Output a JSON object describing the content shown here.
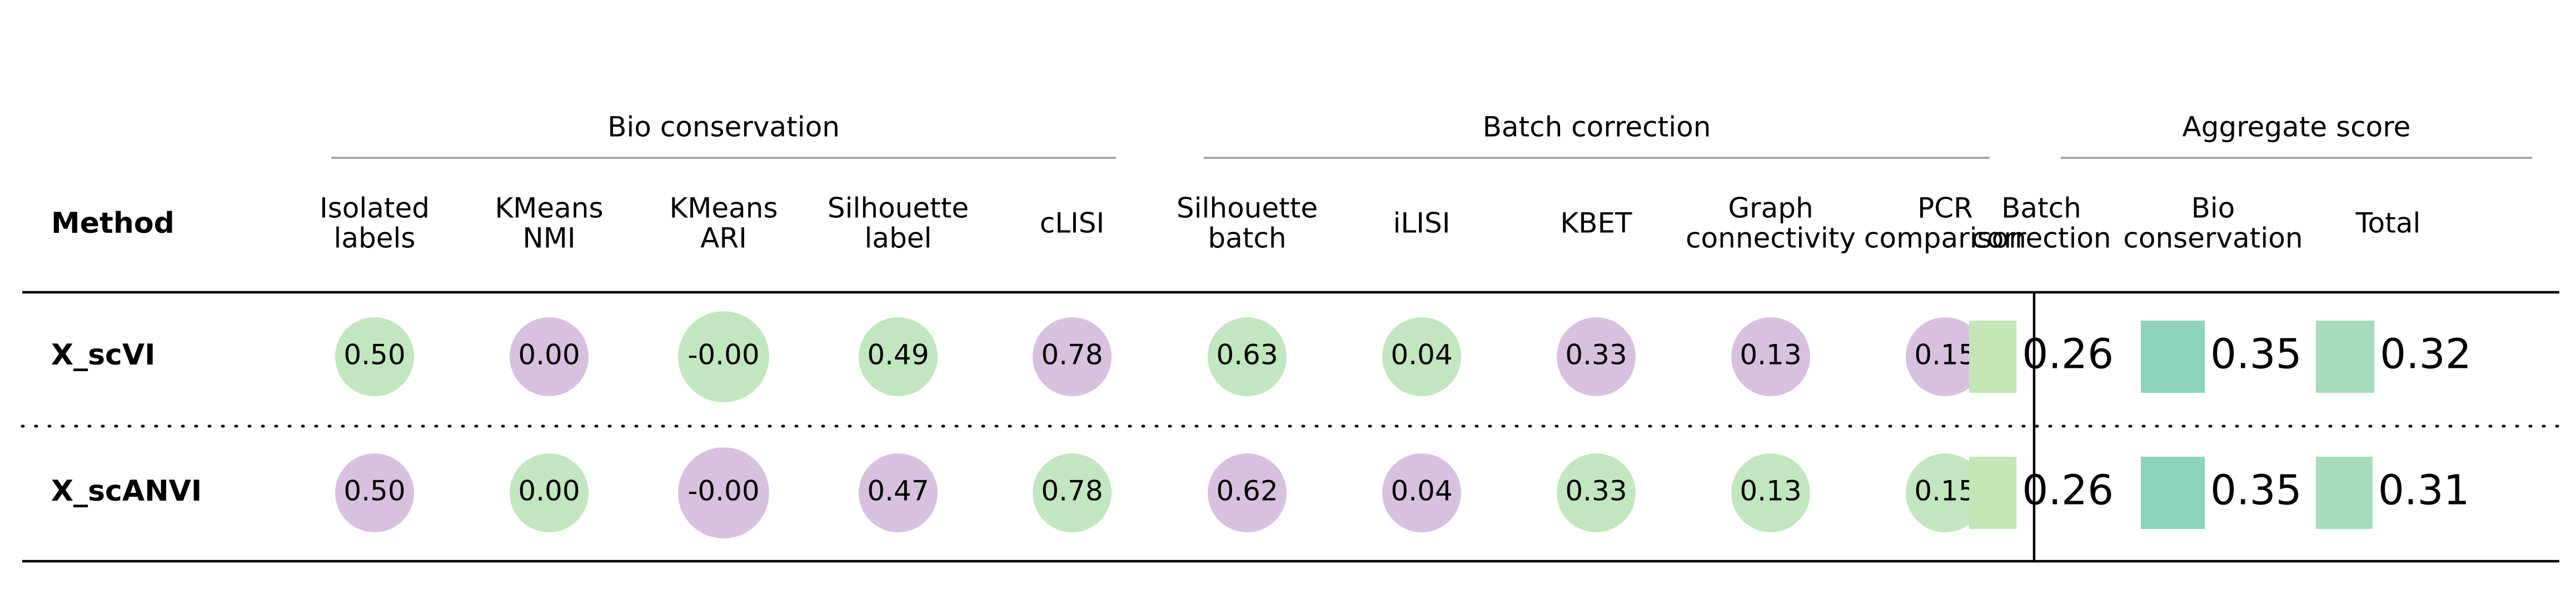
{
  "chart_data": {
    "type": "table",
    "method_header": "Method",
    "groups": [
      {
        "title": "Bio conservation",
        "columns": [
          0,
          1,
          2,
          3,
          4
        ]
      },
      {
        "title": "Batch correction",
        "columns": [
          5,
          6,
          7,
          8,
          9
        ]
      },
      {
        "title": "Aggregate score",
        "columns": [
          10,
          11,
          12
        ]
      }
    ],
    "columns": [
      {
        "label": [
          "Isolated",
          "labels"
        ],
        "kind": "circle"
      },
      {
        "label": [
          "KMeans",
          "NMI"
        ],
        "kind": "circle"
      },
      {
        "label": [
          "KMeans",
          "ARI"
        ],
        "kind": "circle"
      },
      {
        "label": [
          "Silhouette",
          "label"
        ],
        "kind": "circle"
      },
      {
        "label": [
          "cLISI"
        ],
        "kind": "circle"
      },
      {
        "label": [
          "Silhouette",
          "batch"
        ],
        "kind": "circle"
      },
      {
        "label": [
          "iLISI"
        ],
        "kind": "circle"
      },
      {
        "label": [
          "KBET"
        ],
        "kind": "circle"
      },
      {
        "label": [
          "Graph",
          "connectivity"
        ],
        "kind": "circle"
      },
      {
        "label": [
          "PCR",
          "comparison"
        ],
        "kind": "circle"
      },
      {
        "label": [
          "Batch",
          "correction"
        ],
        "kind": "bar"
      },
      {
        "label": [
          "Bio",
          "conservation"
        ],
        "kind": "bar"
      },
      {
        "label": [
          "Total"
        ],
        "kind": "bar"
      }
    ],
    "rows": [
      {
        "method": "X_scVI",
        "cells": [
          {
            "text": "0.50",
            "score": 0.5,
            "color": "#c2e6bf",
            "size": 0.5
          },
          {
            "text": "0.00",
            "score": 0.0,
            "color": "#d7c1df",
            "size": 0.5
          },
          {
            "text": "-0.00",
            "score": 0.0,
            "color": "#c2e6bf",
            "size": 1.0
          },
          {
            "text": "0.49",
            "score": 0.49,
            "color": "#c2e6bf",
            "size": 0.5
          },
          {
            "text": "0.78",
            "score": 0.78,
            "color": "#d7c1df",
            "size": 0.5
          },
          {
            "text": "0.63",
            "score": 0.63,
            "color": "#c2e6bf",
            "size": 0.5
          },
          {
            "text": "0.04",
            "score": 0.04,
            "color": "#c2e6bf",
            "size": 0.5
          },
          {
            "text": "0.33",
            "score": 0.33,
            "color": "#d7c1df",
            "size": 0.5
          },
          {
            "text": "0.13",
            "score": 0.13,
            "color": "#d7c1df",
            "size": 0.5
          },
          {
            "text": "0.15",
            "score": 0.15,
            "color": "#d7c1df",
            "size": 0.5
          },
          {
            "text": "0.26",
            "score": 0.26,
            "color": "#c2e6b4",
            "fill": 0.26
          },
          {
            "text": "0.35",
            "score": 0.35,
            "color": "#8dd3bd",
            "fill": 0.35
          },
          {
            "text": "0.32",
            "score": 0.32,
            "color": "#a6dbbc",
            "fill": 0.32
          }
        ]
      },
      {
        "method": "X_scANVI",
        "cells": [
          {
            "text": "0.50",
            "score": 0.5,
            "color": "#d7c1df",
            "size": 0.5
          },
          {
            "text": "0.00",
            "score": 0.0,
            "color": "#c2e6bf",
            "size": 0.5
          },
          {
            "text": "-0.00",
            "score": 0.0,
            "color": "#d7c1df",
            "size": 1.0
          },
          {
            "text": "0.47",
            "score": 0.47,
            "color": "#d7c1df",
            "size": 0.5
          },
          {
            "text": "0.78",
            "score": 0.78,
            "color": "#c2e6bf",
            "size": 0.5
          },
          {
            "text": "0.62",
            "score": 0.62,
            "color": "#d7c1df",
            "size": 0.5
          },
          {
            "text": "0.04",
            "score": 0.04,
            "color": "#d7c1df",
            "size": 0.5
          },
          {
            "text": "0.33",
            "score": 0.33,
            "color": "#c2e6bf",
            "size": 0.5
          },
          {
            "text": "0.13",
            "score": 0.13,
            "color": "#c2e6bf",
            "size": 0.5
          },
          {
            "text": "0.15",
            "score": 0.15,
            "color": "#c2e6bf",
            "size": 0.5
          },
          {
            "text": "0.26",
            "score": 0.26,
            "color": "#c2e6b4",
            "fill": 0.26
          },
          {
            "text": "0.35",
            "score": 0.35,
            "color": "#8dd3bd",
            "fill": 0.35
          },
          {
            "text": "0.31",
            "score": 0.31,
            "color": "#a6dbbc",
            "fill": 0.31
          }
        ]
      }
    ],
    "grid": false,
    "legend": "none"
  }
}
